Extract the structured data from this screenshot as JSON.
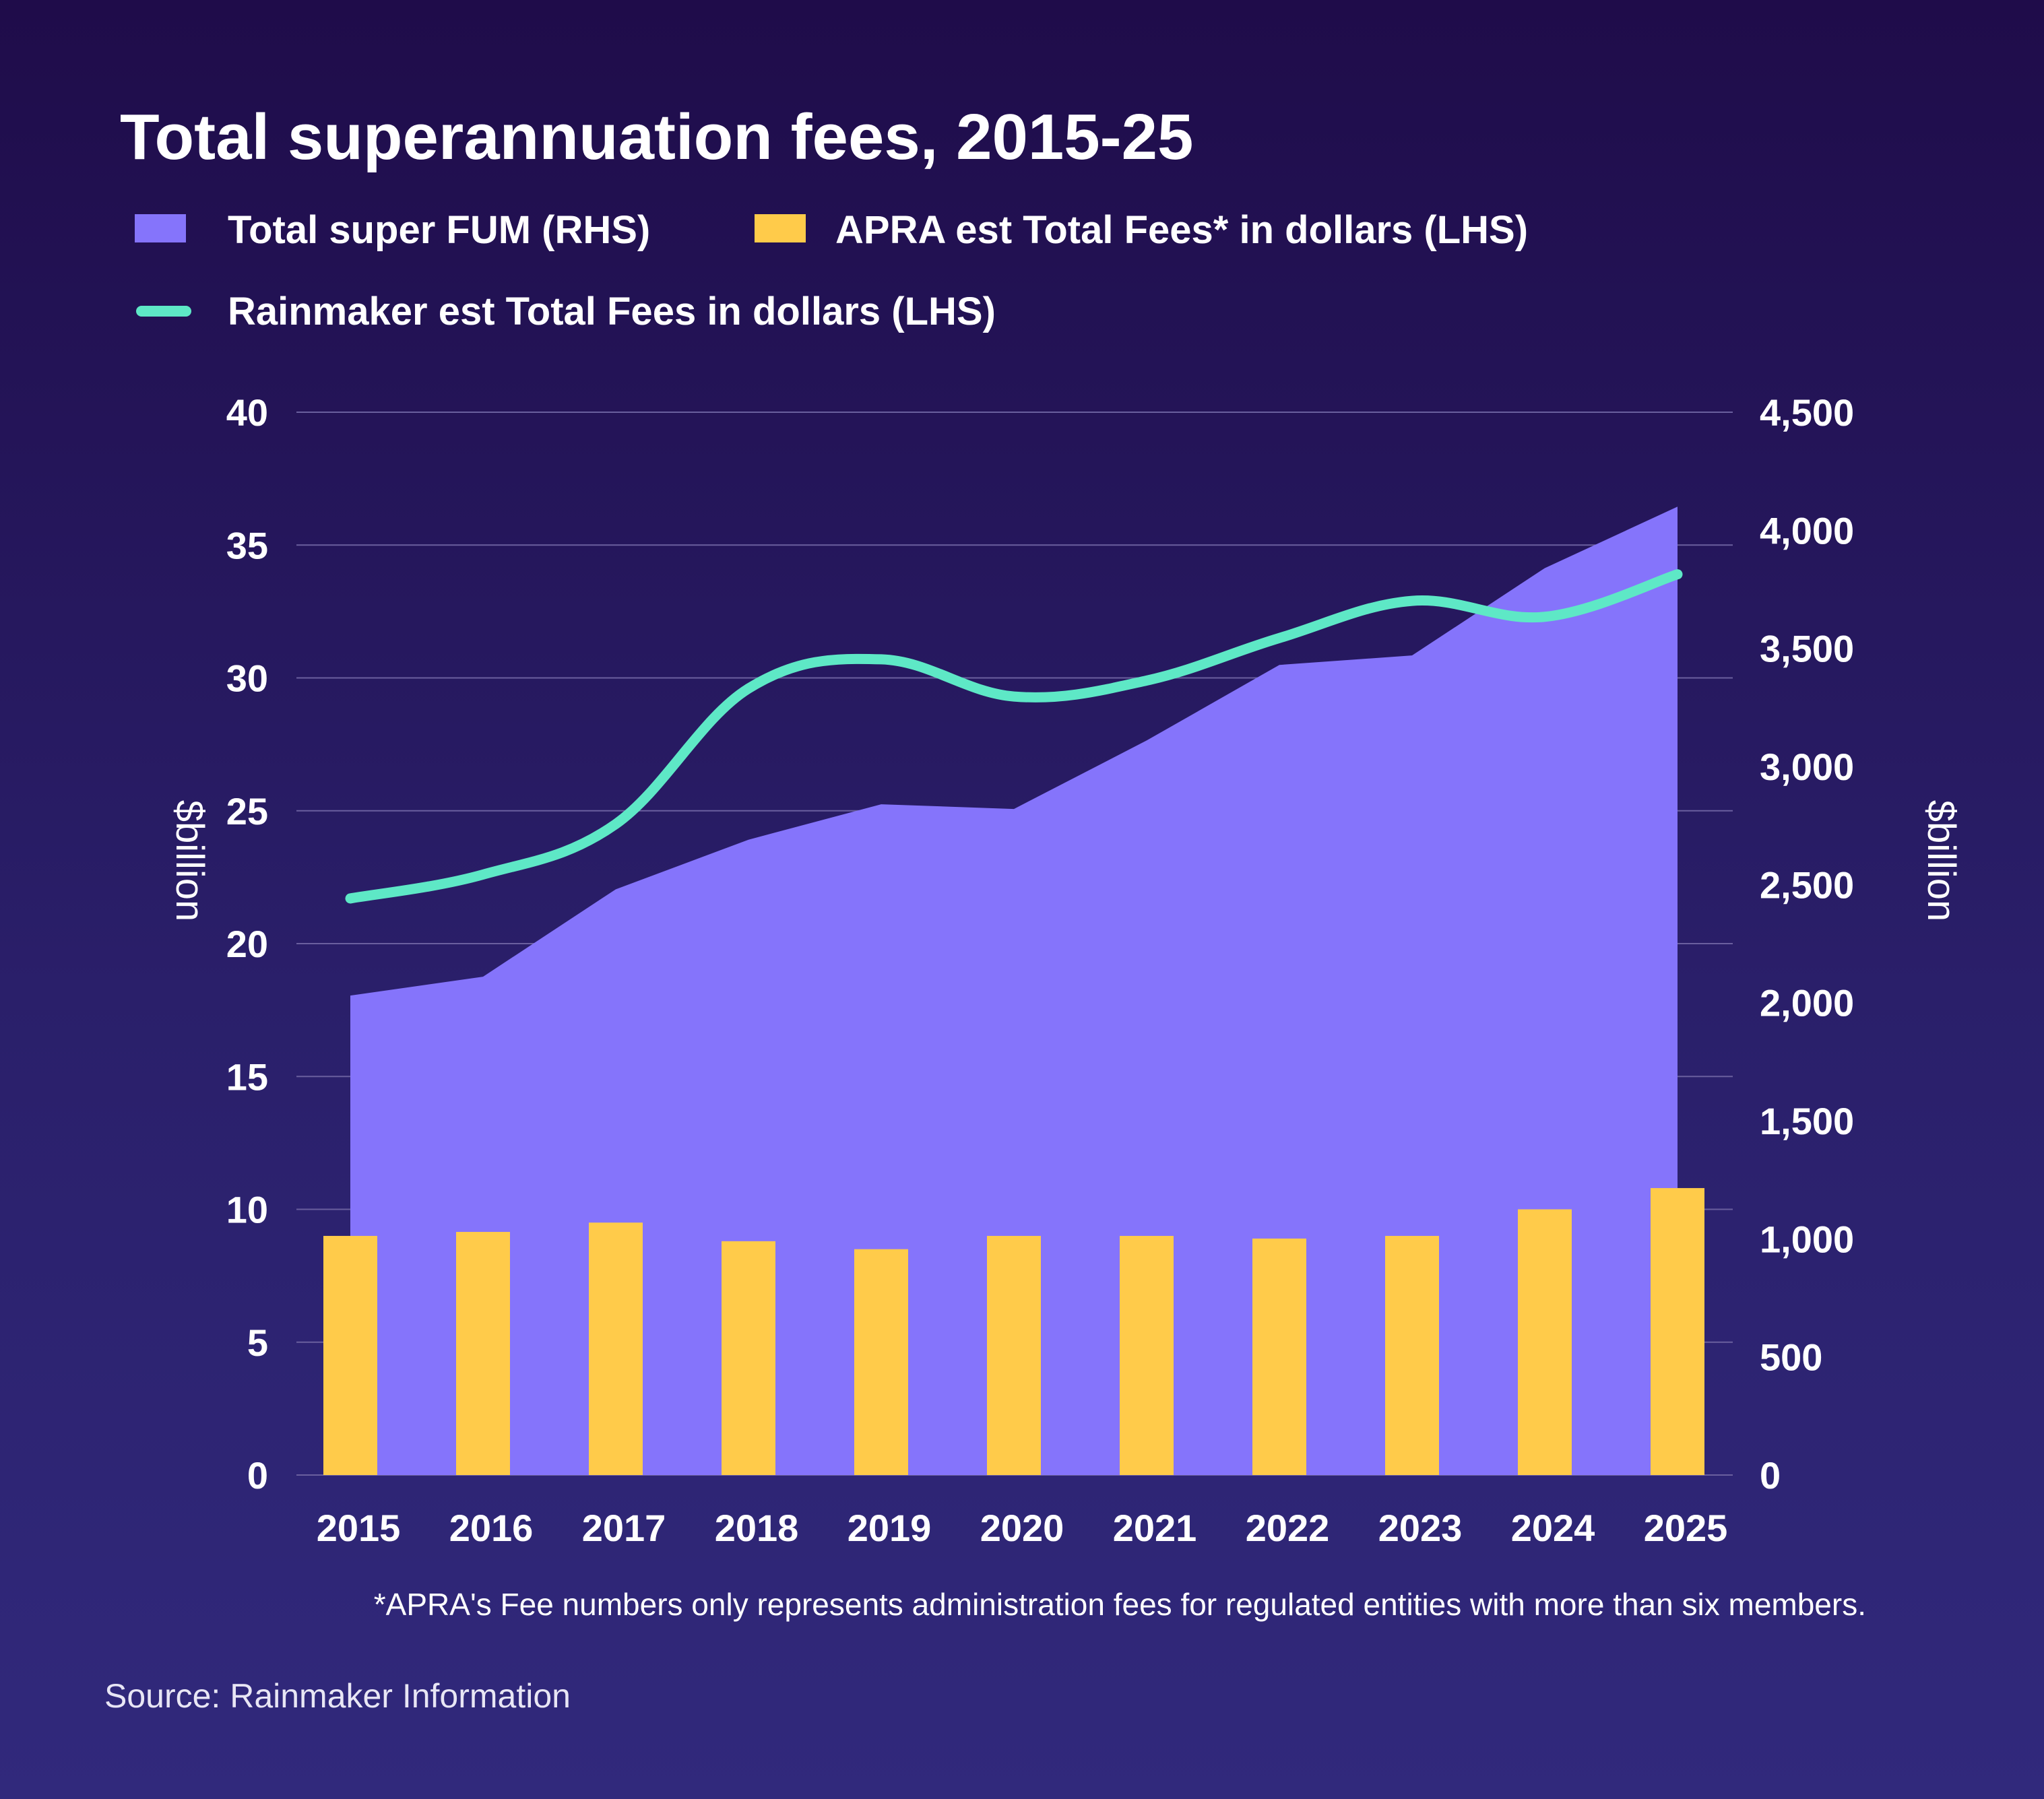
{
  "chart_data": {
    "type": "bar",
    "title": "Total superannuation fees, 2015-25",
    "categories": [
      "2015",
      "2016",
      "2017",
      "2018",
      "2019",
      "2020",
      "2021",
      "2022",
      "2023",
      "2024",
      "2025"
    ],
    "series": [
      {
        "name": "Total super FUM (RHS)",
        "kind": "area",
        "axis": "right",
        "color": "#8574fb",
        "values": [
          2030,
          2110,
          2480,
          2690,
          2840,
          2820,
          3110,
          3430,
          3470,
          3840,
          4100
        ]
      },
      {
        "name": "APRA est Total Fees* in dollars (LHS)",
        "kind": "bar",
        "axis": "left",
        "color": "#ffcb4a",
        "values": [
          9.0,
          9.15,
          9.5,
          8.8,
          8.5,
          9.0,
          9.0,
          8.9,
          9.0,
          10.0,
          10.8
        ]
      },
      {
        "name": "Rainmaker est Total Fees in dollars (LHS)",
        "kind": "line",
        "axis": "left",
        "color": "#5ee8c6",
        "values": [
          21.7,
          22.6,
          24.5,
          29.6,
          30.7,
          29.3,
          29.9,
          31.5,
          32.9,
          32.3,
          33.9
        ]
      }
    ],
    "y_left": {
      "label": "$billion",
      "range": [
        0,
        40
      ],
      "ticks": [
        "0",
        "5",
        "10",
        "15",
        "20",
        "25",
        "30",
        "35",
        "40"
      ]
    },
    "y_right": {
      "label": "$billion",
      "range": [
        0,
        4500
      ],
      "ticks": [
        "0",
        "500",
        "1,000",
        "1,500",
        "2,000",
        "2,500",
        "3,000",
        "3,500",
        "4,000",
        "4,500"
      ]
    },
    "grid": true,
    "legend_position": "top-left"
  },
  "footnote": "*APRA's Fee numbers only represents administration fees for  regulated entities with more than six members.",
  "source": "Source: Rainmaker Information"
}
